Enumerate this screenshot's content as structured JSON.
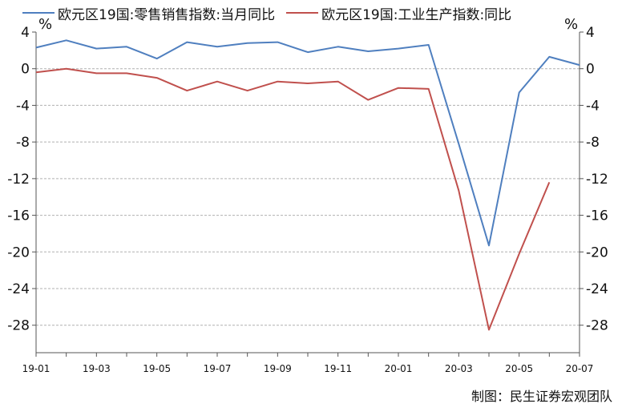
{
  "chart_data": {
    "type": "line",
    "unit_left": "%",
    "unit_right": "%",
    "credit": "制图：民生证券宏观团队",
    "x": [
      "19-01",
      "19-02",
      "19-03",
      "19-04",
      "19-05",
      "19-06",
      "19-07",
      "19-08",
      "19-09",
      "19-10",
      "19-11",
      "19-12",
      "20-01",
      "20-02",
      "20-03",
      "20-04",
      "20-05",
      "20-06",
      "20-07"
    ],
    "x_tick_labels": [
      "19-01",
      "19-03",
      "19-05",
      "19-07",
      "19-09",
      "19-11",
      "20-01",
      "20-03",
      "20-05",
      "20-07"
    ],
    "ylim": [
      -31,
      4
    ],
    "y_ticks": [
      4,
      0,
      -4,
      -8,
      -12,
      -16,
      -20,
      -24,
      -28
    ],
    "grid": true,
    "legend_position": "top",
    "series": [
      {
        "name": "欧元区19国:零售销售指数:当月同比",
        "color": "#4f7fbf",
        "values": [
          2.3,
          3.1,
          2.2,
          2.4,
          1.1,
          2.9,
          2.4,
          2.8,
          2.9,
          1.8,
          2.4,
          1.9,
          2.2,
          2.6,
          -8.2,
          -19.3,
          -2.6,
          1.3,
          0.4
        ]
      },
      {
        "name": "欧元区19国:工业生产指数:同比",
        "color": "#c0504d",
        "values": [
          -0.4,
          0.0,
          -0.5,
          -0.5,
          -1.0,
          -2.4,
          -1.4,
          -2.4,
          -1.4,
          -1.6,
          -1.4,
          -3.4,
          -2.1,
          -2.2,
          -13.3,
          -28.5,
          -20.2,
          -12.4,
          null
        ]
      }
    ]
  }
}
